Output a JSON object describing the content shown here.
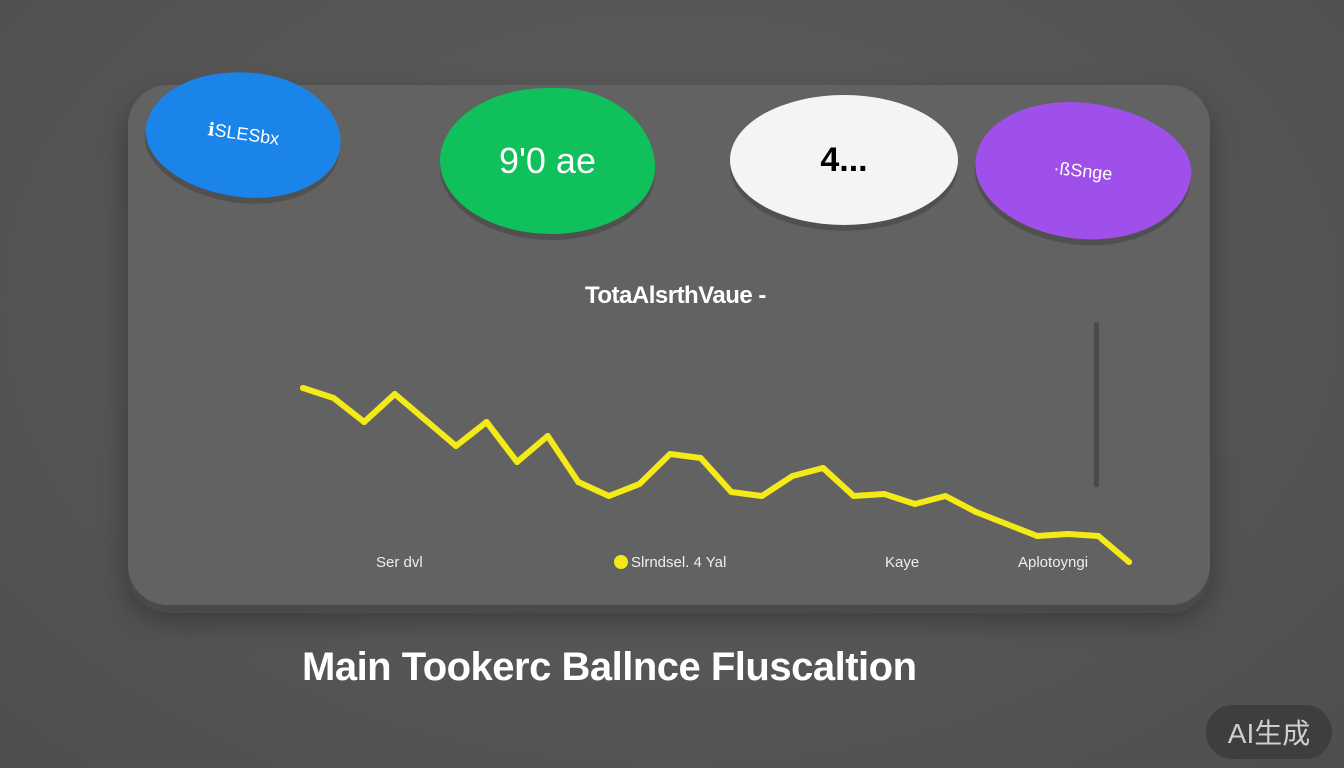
{
  "stat_bubbles": [
    {
      "label": "ℹSLESbx",
      "color": "#1a84e8"
    },
    {
      "label": "9'0 ae",
      "color": "#10c05a"
    },
    {
      "label": "4...",
      "color": "#f4f4f4"
    },
    {
      "label": "·ßSnge",
      "color": "#a050ea"
    }
  ],
  "chart_data": {
    "type": "line",
    "title": "TotaAlsrthVaue -",
    "xlabel": "",
    "ylabel": "",
    "x": [
      0,
      1,
      2,
      3,
      4,
      5,
      6,
      7,
      8,
      9,
      10,
      11,
      12,
      13,
      14,
      15,
      16,
      17,
      18,
      19,
      20,
      21,
      22,
      23,
      24,
      25,
      26,
      27
    ],
    "series": [
      {
        "color": "#f4ea18",
        "values": [
          96,
          91,
          79,
          93,
          80,
          67,
          79,
          59,
          72,
          49,
          42,
          48,
          63,
          61,
          44,
          42,
          52,
          56,
          42,
          43,
          38,
          42,
          34,
          28,
          22,
          23,
          22,
          9
        ]
      }
    ],
    "ylim": [
      0,
      100
    ],
    "grid": false,
    "legend_position": "bottom",
    "legend": [
      "Ser dvl",
      "Slrndsel. 4 Yal",
      "Kaye",
      "Aplotoyngi"
    ]
  },
  "main_title": "Main Tookerc Ballnce Fluscaltion",
  "badge": "AI生成"
}
